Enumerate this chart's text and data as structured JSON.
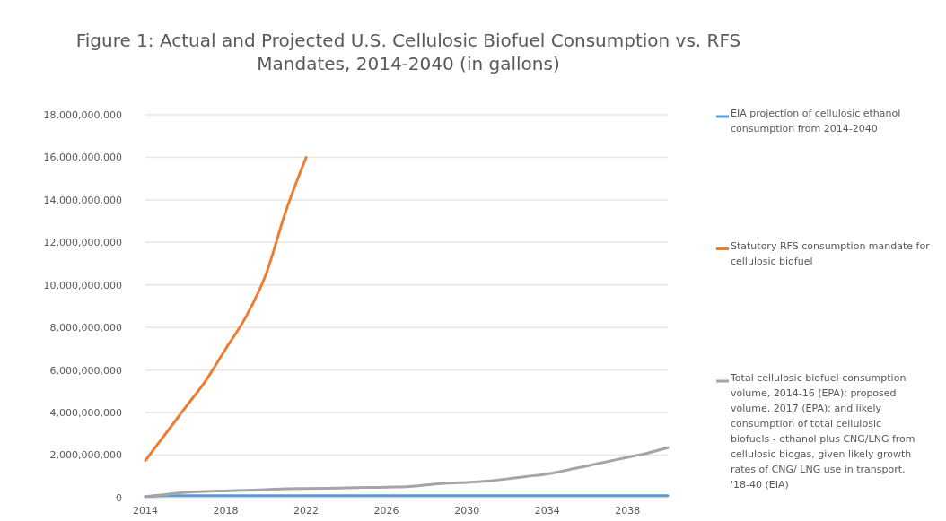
{
  "chart_data": {
    "type": "line",
    "title": "Figure 1: Actual and Projected U.S. Cellulosic Biofuel Consumption vs. RFS Mandates, 2014-2040 (in gallons)",
    "x": [
      2014,
      2015,
      2016,
      2017,
      2018,
      2019,
      2020,
      2021,
      2022,
      2023,
      2024,
      2025,
      2026,
      2027,
      2028,
      2029,
      2030,
      2031,
      2032,
      2033,
      2034,
      2035,
      2036,
      2037,
      2038,
      2039,
      2040
    ],
    "series": [
      {
        "name": "EIA projection of cellulosic ethanol consumption from 2014-2040",
        "color": "#5b9bd5",
        "values": [
          50000000,
          100000000,
          100000000,
          100000000,
          100000000,
          100000000,
          100000000,
          100000000,
          100000000,
          100000000,
          100000000,
          100000000,
          100000000,
          100000000,
          100000000,
          100000000,
          100000000,
          100000000,
          100000000,
          100000000,
          100000000,
          100000000,
          100000000,
          100000000,
          100000000,
          100000000,
          100000000
        ]
      },
      {
        "name": "Statutory RFS consumption mandate for cellulosic biofuel",
        "color": "#ed7d31",
        "values": [
          1750000000,
          3000000000,
          4250000000,
          5500000000,
          7000000000,
          8500000000,
          10500000000,
          13500000000,
          16000000000,
          null,
          null,
          null,
          null,
          null,
          null,
          null,
          null,
          null,
          null,
          null,
          null,
          null,
          null,
          null,
          null,
          null,
          null
        ]
      },
      {
        "name": "Total cellulosic biofuel consumption volume, 2014-16 (EPA); proposed volume, 2017 (EPA); and likely consumption of total cellulosic biofuels - ethanol plus CNG/LNG from cellulosic biogas, given likely growth rates of CNG/ LNG use in transport, '18-40 (EIA)",
        "color": "#a5a5a5",
        "values": [
          50000000,
          150000000,
          250000000,
          300000000,
          320000000,
          350000000,
          380000000,
          420000000,
          430000000,
          440000000,
          460000000,
          480000000,
          500000000,
          520000000,
          600000000,
          680000000,
          720000000,
          780000000,
          880000000,
          1000000000,
          1120000000,
          1300000000,
          1500000000,
          1700000000,
          1900000000,
          2100000000,
          2350000000
        ]
      }
    ],
    "xlim": [
      2014,
      2040
    ],
    "xticks": [
      2014,
      2018,
      2022,
      2026,
      2030,
      2034,
      2038
    ],
    "ylim": [
      0,
      18000000000
    ],
    "yticks": [
      0,
      {
        "value": 2000000000,
        "label": "2,000,000,000"
      },
      {
        "value": 4000000000,
        "label": "4,000,000,000"
      },
      {
        "value": 6000000000,
        "label": "6,000,000,000"
      },
      {
        "value": 8000000000,
        "label": "8,000,000,000"
      },
      {
        "value": 10000000000,
        "label": "10,000,000,000"
      },
      {
        "value": 12000000000,
        "label": "12,000,000,000"
      },
      {
        "value": 14000000000,
        "label": "14,000,000,000"
      },
      {
        "value": 16000000000,
        "label": "16,000,000,000"
      },
      {
        "value": 18000000000,
        "label": "18,000,000,000"
      }
    ],
    "grid": "y",
    "legend": "right",
    "marker": "none",
    "line_style": "solid"
  }
}
